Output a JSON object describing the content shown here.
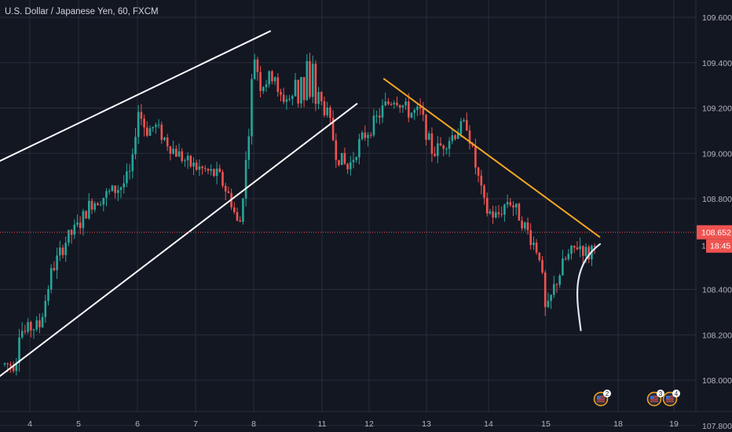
{
  "header": {
    "title": "U.S. Dollar / Japanese Yen, 60, FXCM"
  },
  "colors": {
    "background": "#131722",
    "grid": "#2a2e39",
    "up": "#26a69a",
    "down": "#ef5350",
    "axis_text": "#b2b5be",
    "trend_white": "#ffffff",
    "trend_orange": "#f5a623",
    "projection": "#dbe7f5",
    "price_line": "#ef5350"
  },
  "price_axis": {
    "current_price_label": "108.652",
    "countdown_label": "18:45",
    "partial_label": "10"
  },
  "events": [
    {
      "icon": "us-flag-icon",
      "count": "2"
    },
    {
      "icon": "us-flag-icon",
      "count": "3"
    },
    {
      "icon": "us-flag-icon",
      "count": "4"
    }
  ],
  "chart_data": {
    "type": "candlestick",
    "title": "U.S. Dollar / Japanese Yen, 60, FXCM",
    "y_ticks": [
      "109.600",
      "109.400",
      "109.200",
      "109.000",
      "108.800",
      "108.400",
      "108.200",
      "108.000",
      "107.800"
    ],
    "x_ticks": [
      "4",
      "5",
      "6",
      "7",
      "8",
      "11",
      "12",
      "13",
      "14",
      "15",
      "18",
      "19"
    ],
    "ylim": [
      107.78,
      109.64
    ],
    "grid": true,
    "current_price": 108.652,
    "price_path": [
      [
        3.7,
        108.07
      ],
      [
        3.8,
        108.27
      ],
      [
        3.85,
        108.2
      ],
      [
        4.0,
        108.23
      ],
      [
        4.2,
        108.24
      ],
      [
        4.45,
        108.48
      ],
      [
        4.75,
        108.62
      ],
      [
        5.0,
        108.68
      ],
      [
        5.2,
        108.78
      ],
      [
        5.5,
        108.82
      ],
      [
        5.75,
        108.86
      ],
      [
        5.9,
        108.92
      ],
      [
        6.0,
        109.2
      ],
      [
        6.15,
        109.1
      ],
      [
        6.3,
        109.12
      ],
      [
        6.6,
        109.02
      ],
      [
        6.9,
        108.95
      ],
      [
        7.2,
        108.92
      ],
      [
        7.4,
        108.9
      ],
      [
        7.6,
        108.8
      ],
      [
        7.75,
        108.66
      ],
      [
        7.9,
        109.05
      ],
      [
        8.0,
        109.45
      ],
      [
        8.1,
        109.3
      ],
      [
        8.3,
        109.35
      ],
      [
        8.5,
        109.3
      ],
      [
        8.7,
        109.35
      ],
      [
        8.85,
        109.43
      ],
      [
        8.95,
        109.25
      ],
      [
        11.0,
        109.22
      ],
      [
        11.15,
        109.15
      ],
      [
        11.3,
        109.0
      ],
      [
        11.55,
        108.93
      ],
      [
        11.8,
        109.05
      ],
      [
        12.05,
        109.12
      ],
      [
        12.25,
        109.2
      ],
      [
        12.45,
        109.25
      ],
      [
        12.7,
        109.18
      ],
      [
        12.9,
        109.18
      ],
      [
        13.1,
        109.0
      ],
      [
        13.3,
        109.05
      ],
      [
        13.5,
        109.1
      ],
      [
        13.65,
        109.13
      ],
      [
        13.8,
        108.93
      ],
      [
        13.95,
        108.75
      ],
      [
        14.15,
        108.72
      ],
      [
        14.35,
        108.8
      ],
      [
        14.55,
        108.72
      ],
      [
        14.75,
        108.62
      ],
      [
        14.9,
        108.55
      ],
      [
        15.0,
        108.28
      ],
      [
        15.1,
        108.4
      ],
      [
        15.25,
        108.52
      ],
      [
        15.45,
        108.6
      ],
      [
        15.6,
        108.55
      ],
      [
        15.7,
        108.65
      ]
    ],
    "trend_lines": [
      {
        "name": "upper-channel",
        "color": "white",
        "points": [
          [
            3.0,
            108.93
          ],
          [
            8.25,
            109.54
          ]
        ]
      },
      {
        "name": "lower-channel",
        "color": "white",
        "points": [
          [
            3.0,
            107.96
          ],
          [
            11.75,
            109.22
          ]
        ]
      },
      {
        "name": "descending-resistance",
        "color": "orange",
        "points": [
          [
            12.25,
            109.33
          ],
          [
            15.75,
            108.63
          ]
        ]
      }
    ],
    "projection": [
      [
        15.75,
        108.6
      ],
      [
        16.0,
        108.5
      ],
      [
        16.3,
        108.35
      ],
      [
        16.45,
        108.22
      ]
    ]
  }
}
